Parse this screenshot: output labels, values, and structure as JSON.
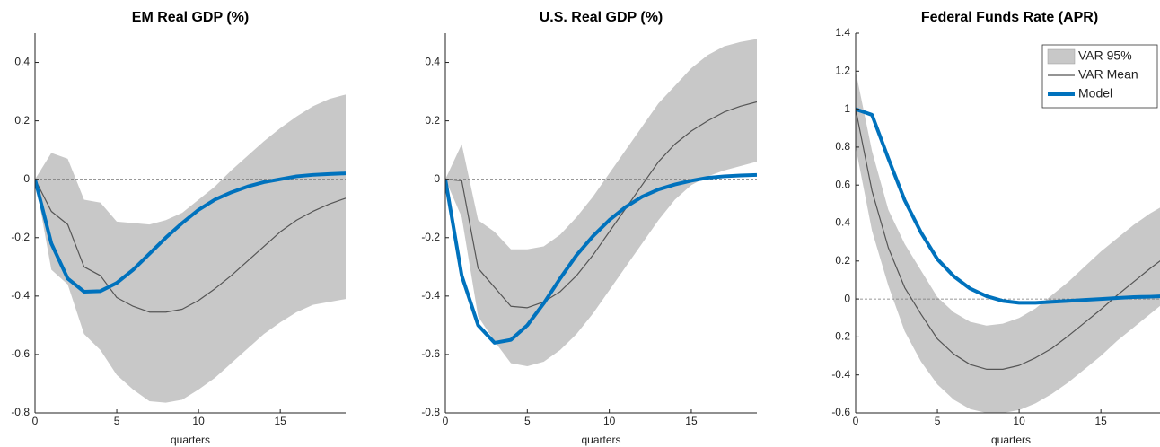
{
  "chart_data": [
    {
      "type": "line",
      "title": "EM Real GDP (%)",
      "x_label": "quarters",
      "x": [
        0,
        1,
        2,
        3,
        4,
        5,
        6,
        7,
        8,
        9,
        10,
        11,
        12,
        13,
        14,
        15,
        16,
        17,
        18,
        19
      ],
      "xlim": [
        0,
        19
      ],
      "xticks": [
        0,
        5,
        10,
        15
      ],
      "ylim": [
        -0.8,
        0.5
      ],
      "yticks": [
        -0.8,
        -0.6,
        -0.4,
        -0.2,
        0,
        0.2,
        0.4
      ],
      "zero_line": true,
      "series": [
        {
          "type": "band",
          "color": "#c8c8c8",
          "lower": [
            0,
            -0.31,
            -0.36,
            -0.53,
            -0.585,
            -0.67,
            -0.72,
            -0.76,
            -0.765,
            -0.755,
            -0.72,
            -0.68,
            -0.63,
            -0.58,
            -0.53,
            -0.49,
            -0.455,
            -0.43,
            -0.42,
            -0.41
          ],
          "upper": [
            0,
            0.09,
            0.07,
            -0.07,
            -0.08,
            -0.145,
            -0.15,
            -0.155,
            -0.14,
            -0.115,
            -0.07,
            -0.025,
            0.03,
            0.08,
            0.13,
            0.175,
            0.215,
            0.25,
            0.275,
            0.29
          ]
        },
        {
          "type": "line",
          "color": "#555555",
          "width": 1.2,
          "values": [
            0,
            -0.11,
            -0.155,
            -0.3,
            -0.33,
            -0.405,
            -0.435,
            -0.455,
            -0.455,
            -0.445,
            -0.415,
            -0.375,
            -0.33,
            -0.28,
            -0.23,
            -0.18,
            -0.14,
            -0.11,
            -0.085,
            -0.065
          ]
        },
        {
          "type": "line",
          "color": "#0072bd",
          "width": 4,
          "values": [
            0,
            -0.22,
            -0.34,
            -0.385,
            -0.383,
            -0.355,
            -0.31,
            -0.255,
            -0.2,
            -0.15,
            -0.105,
            -0.07,
            -0.045,
            -0.025,
            -0.01,
            0,
            0.01,
            0.015,
            0.018,
            0.02
          ]
        }
      ]
    },
    {
      "type": "line",
      "title": "U.S. Real GDP (%)",
      "x_label": "quarters",
      "x": [
        0,
        1,
        2,
        3,
        4,
        5,
        6,
        7,
        8,
        9,
        10,
        11,
        12,
        13,
        14,
        15,
        16,
        17,
        18,
        19
      ],
      "xlim": [
        0,
        19
      ],
      "xticks": [
        0,
        5,
        10,
        15
      ],
      "ylim": [
        -0.8,
        0.5
      ],
      "yticks": [
        -0.8,
        -0.6,
        -0.4,
        -0.2,
        0,
        0.2,
        0.4
      ],
      "zero_line": true,
      "series": [
        {
          "type": "band",
          "color": "#c8c8c8",
          "lower": [
            0,
            -0.13,
            -0.47,
            -0.555,
            -0.63,
            -0.64,
            -0.625,
            -0.585,
            -0.53,
            -0.46,
            -0.38,
            -0.3,
            -0.22,
            -0.14,
            -0.07,
            -0.02,
            0.01,
            0.03,
            0.045,
            0.06
          ],
          "upper": [
            0,
            0.12,
            -0.14,
            -0.18,
            -0.24,
            -0.24,
            -0.23,
            -0.19,
            -0.13,
            -0.06,
            0.02,
            0.1,
            0.18,
            0.26,
            0.32,
            0.38,
            0.425,
            0.455,
            0.47,
            0.48
          ]
        },
        {
          "type": "line",
          "color": "#555555",
          "width": 1.2,
          "values": [
            0,
            -0.005,
            -0.305,
            -0.37,
            -0.435,
            -0.44,
            -0.42,
            -0.385,
            -0.33,
            -0.26,
            -0.18,
            -0.1,
            -0.02,
            0.06,
            0.12,
            0.165,
            0.2,
            0.23,
            0.25,
            0.265
          ]
        },
        {
          "type": "line",
          "color": "#0072bd",
          "width": 4,
          "values": [
            0,
            -0.33,
            -0.5,
            -0.56,
            -0.55,
            -0.5,
            -0.425,
            -0.34,
            -0.26,
            -0.195,
            -0.14,
            -0.095,
            -0.06,
            -0.035,
            -0.018,
            -0.005,
            0.005,
            0.01,
            0.013,
            0.015
          ]
        }
      ]
    },
    {
      "type": "line",
      "title": "Federal Funds Rate (APR)",
      "x_label": "quarters",
      "x": [
        0,
        1,
        2,
        3,
        4,
        5,
        6,
        7,
        8,
        9,
        10,
        11,
        12,
        13,
        14,
        15,
        16,
        17,
        18,
        19
      ],
      "xlim": [
        0,
        19
      ],
      "xticks": [
        0,
        5,
        10,
        15
      ],
      "ylim": [
        -0.6,
        1.4
      ],
      "yticks": [
        -0.6,
        -0.4,
        -0.2,
        0,
        0.2,
        0.4,
        0.6,
        0.8,
        1,
        1.2,
        1.4
      ],
      "zero_line": true,
      "legend": "northeast",
      "series": [
        {
          "type": "band",
          "name": "VAR 95%",
          "color": "#c8c8c8",
          "lower": [
            0.8,
            0.36,
            0.07,
            -0.17,
            -0.33,
            -0.45,
            -0.53,
            -0.58,
            -0.6,
            -0.6,
            -0.585,
            -0.55,
            -0.5,
            -0.44,
            -0.37,
            -0.3,
            -0.22,
            -0.15,
            -0.08,
            -0.01
          ],
          "upper": [
            1.2,
            0.78,
            0.47,
            0.29,
            0.15,
            0.01,
            -0.07,
            -0.12,
            -0.14,
            -0.13,
            -0.1,
            -0.05,
            0.02,
            0.09,
            0.17,
            0.25,
            0.32,
            0.39,
            0.45,
            0.5
          ]
        },
        {
          "type": "line",
          "name": "VAR Mean",
          "color": "#555555",
          "width": 1.2,
          "values": [
            1,
            0.57,
            0.27,
            0.06,
            -0.08,
            -0.21,
            -0.29,
            -0.345,
            -0.37,
            -0.37,
            -0.35,
            -0.31,
            -0.26,
            -0.195,
            -0.125,
            -0.055,
            0.02,
            0.09,
            0.16,
            0.225
          ]
        },
        {
          "type": "line",
          "name": "Model",
          "color": "#0072bd",
          "width": 4,
          "values": [
            1,
            0.97,
            0.74,
            0.52,
            0.35,
            0.21,
            0.12,
            0.055,
            0.015,
            -0.01,
            -0.02,
            -0.02,
            -0.015,
            -0.01,
            -0.005,
            0,
            0.005,
            0.01,
            0.012,
            0.015
          ]
        }
      ]
    }
  ]
}
